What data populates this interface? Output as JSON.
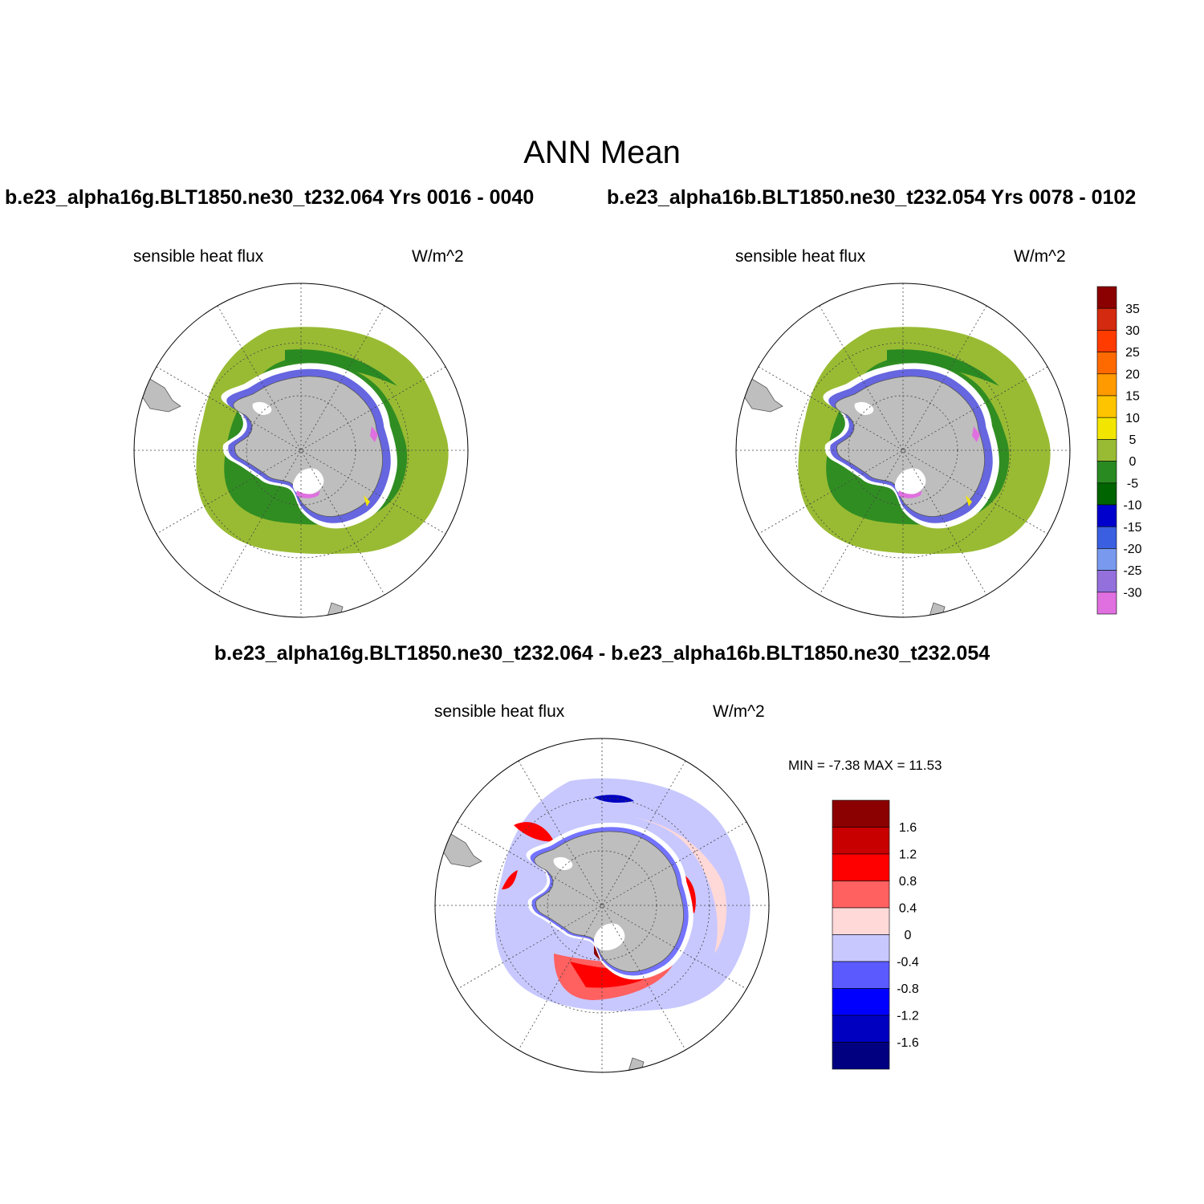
{
  "figure": {
    "title": "ANN Mean",
    "case_a_title": "b.e23_alpha16g.BLT1850.ne30_t232.064  Yrs 0016 - 0040",
    "case_b_title": "b.e23_alpha16b.BLT1850.ne30_t232.054  Yrs 0078 - 0102",
    "diff_title": "b.e23_alpha16g.BLT1850.ne30_t232.064 - b.e23_alpha16b.BLT1850.ne30_t232.054",
    "panels": [
      {
        "variable": "sensible heat flux",
        "units": "W/m^2"
      },
      {
        "variable": "sensible heat flux",
        "units": "W/m^2"
      },
      {
        "variable": "sensible heat flux",
        "units": "W/m^2"
      }
    ],
    "diff_minmax": "MIN =  -7.38 MAX =  11.53"
  },
  "colorbar_main": {
    "levels": [
      "35",
      "30",
      "25",
      "20",
      "15",
      "10",
      "5",
      "0",
      "-5",
      "-10",
      "-15",
      "-20",
      "-25",
      "-30"
    ],
    "colors": [
      "#8b0000",
      "#d42a0f",
      "#ff3b00",
      "#ff6a00",
      "#ff9a00",
      "#ffc400",
      "#f2e600",
      "#99bb33",
      "#2a8a22",
      "#006400",
      "#0000cc",
      "#3a5fe0",
      "#7899ee",
      "#9370db",
      "#e070e0"
    ]
  },
  "colorbar_diff": {
    "levels": [
      "1.6",
      "1.2",
      "0.8",
      "0.4",
      "0",
      "-0.4",
      "-0.8",
      "-1.2",
      "-1.6"
    ],
    "colors": [
      "#8b0000",
      "#c80000",
      "#ff0000",
      "#ff6060",
      "#ffd8d8",
      "#c8c8ff",
      "#5a5aff",
      "#0000ff",
      "#0000c0",
      "#000080"
    ]
  },
  "legend_colors": {
    "land": "#bebebe",
    "sea_ice": "#ffffff",
    "ocean_base_main": "#99bb33",
    "ocean_band_main": "#2a8a22"
  }
}
